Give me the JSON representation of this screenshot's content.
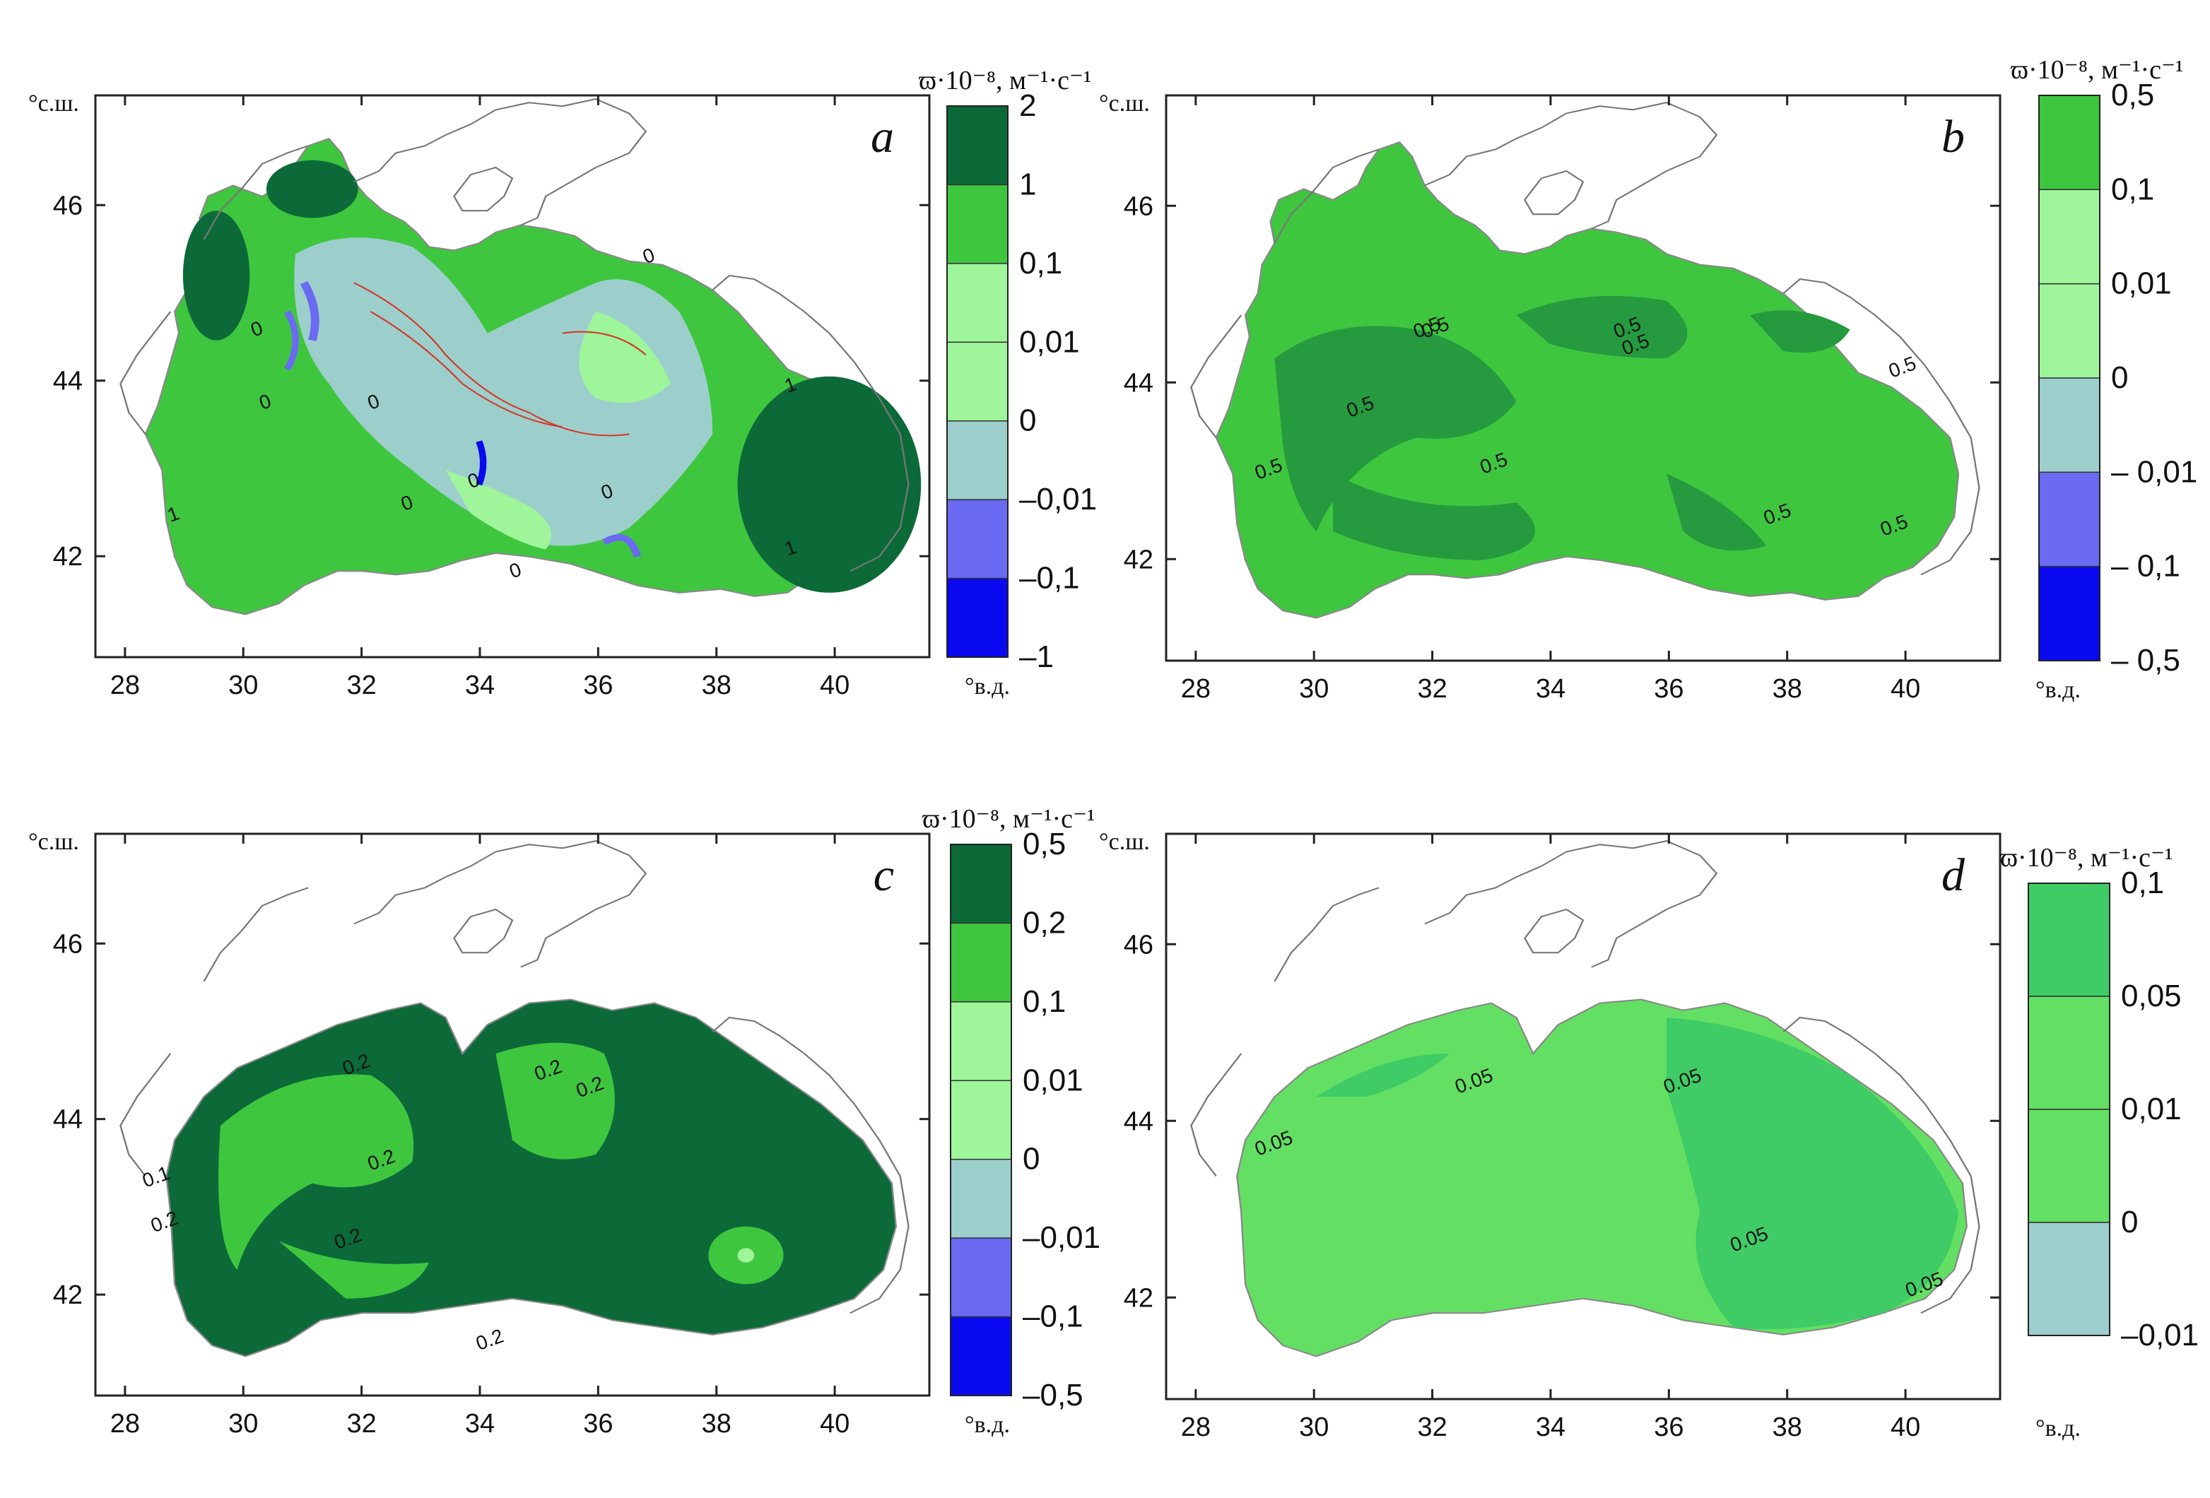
{
  "axis_units": {
    "lat": "°с.ш.",
    "lon": "°в.д."
  },
  "colorbar_title": "ϖ·10⁻⁸, м⁻¹·с⁻¹",
  "lon_ticks": [
    "28",
    "30",
    "32",
    "34",
    "36",
    "38",
    "40"
  ],
  "lat_ticks": [
    "46",
    "44",
    "42"
  ],
  "colors": {
    "dark_green": "#0b6a38",
    "green": "#3fc63f",
    "light_green": "#9ef59a",
    "gray_blue": "#9ccfcc",
    "blue_light": "#6a6af2",
    "blue": "#0a0af0",
    "mid_green_d1": "#3fcc66",
    "mid_green_d2": "#63e063",
    "coast": "#777777"
  },
  "panels": [
    {
      "letter": "a",
      "colorbar_labels": [
        "2",
        "1",
        "0,1",
        "0,01",
        "0",
        "–0,01",
        "–0,1",
        "–1"
      ],
      "contour_labels": [
        "0",
        "0",
        "0",
        "0",
        "0",
        "0",
        "0",
        "0",
        "1",
        "1",
        "1"
      ]
    },
    {
      "letter": "b",
      "colorbar_labels": [
        "0,5",
        "0,1",
        "0,01",
        "0",
        "– 0,01",
        "– 0,1",
        "– 0,5"
      ],
      "contour_labels": [
        "0.5",
        "0.5",
        "0.5",
        "0.5",
        "0.5",
        "0.5",
        "0.5",
        "0.5",
        "0.5",
        "0.5"
      ]
    },
    {
      "letter": "c",
      "colorbar_labels": [
        "0,5",
        "0,2",
        "0,1",
        "0,01",
        "0",
        "–0,01",
        "–0,1",
        "–0,5"
      ],
      "contour_labels": [
        "0.2",
        "0.2",
        "0.2",
        "0.2",
        "0.2",
        "0.2",
        "0.2",
        "0.1"
      ]
    },
    {
      "letter": "d",
      "colorbar_labels": [
        "0,1",
        "0,05",
        "0,01",
        "0",
        "–0,01"
      ],
      "contour_labels": [
        "0.05",
        "0.05",
        "0.05",
        "0.05",
        "0.05"
      ]
    }
  ]
}
